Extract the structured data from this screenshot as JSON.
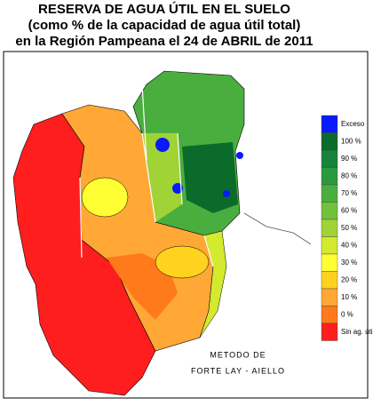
{
  "title": [
    "RESERVA DE AGUA ÚTIL EN EL SUELO",
    "(como % de la capacidad de agua útil total)",
    "en la Región Pampeana el 24 de ABRIL de 2011"
  ],
  "legend": [
    {
      "label": "Exceso",
      "color": "#0a1aff"
    },
    {
      "label": "100 %",
      "color": "#0b6b2a"
    },
    {
      "label": "90 %",
      "color": "#17823a"
    },
    {
      "label": "80 %",
      "color": "#2b9a3e"
    },
    {
      "label": "70 %",
      "color": "#4aae3f"
    },
    {
      "label": "60 %",
      "color": "#6fc23a"
    },
    {
      "label": "50 %",
      "color": "#9fd336"
    },
    {
      "label": "40 %",
      "color": "#d3ea2e"
    },
    {
      "label": "30 %",
      "color": "#ffff33"
    },
    {
      "label": "20 %",
      "color": "#ffd21f"
    },
    {
      "label": "10 %",
      "color": "#ffa836"
    },
    {
      "label": "0 %",
      "color": "#ff7a1a"
    },
    {
      "label": "Sin ag. útil",
      "color": "#ff1e1e"
    }
  ],
  "method": [
    "METODO DE",
    "FORTE LAY - AIELLO"
  ]
}
